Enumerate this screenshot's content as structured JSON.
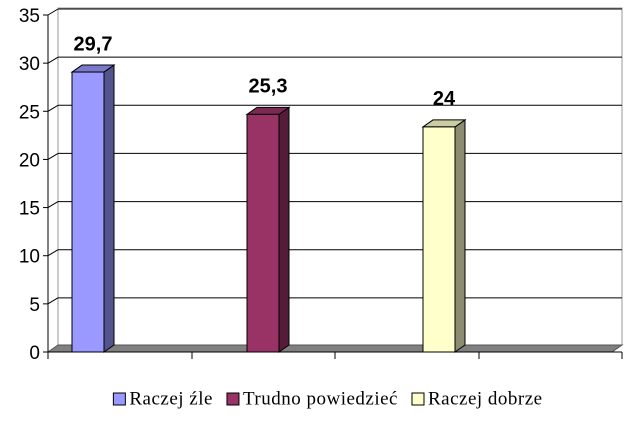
{
  "chart_data": {
    "type": "bar3d",
    "series": [
      {
        "name": "Raczej źle",
        "color": "#9999ff",
        "values": [
          29.7
        ],
        "value_labels": [
          "29,7"
        ]
      },
      {
        "name": "Trudno powiedzieć",
        "color": "#993366",
        "values": [
          25.3
        ],
        "value_labels": [
          "25,3"
        ]
      },
      {
        "name": "Raczej dobrze",
        "color": "#ffffcc",
        "values": [
          24
        ],
        "value_labels": [
          "24"
        ]
      }
    ],
    "ylim": [
      0,
      35
    ],
    "yticks": [
      0,
      5,
      10,
      15,
      20,
      25,
      30,
      35
    ],
    "grid": true,
    "legend": "bottom"
  }
}
